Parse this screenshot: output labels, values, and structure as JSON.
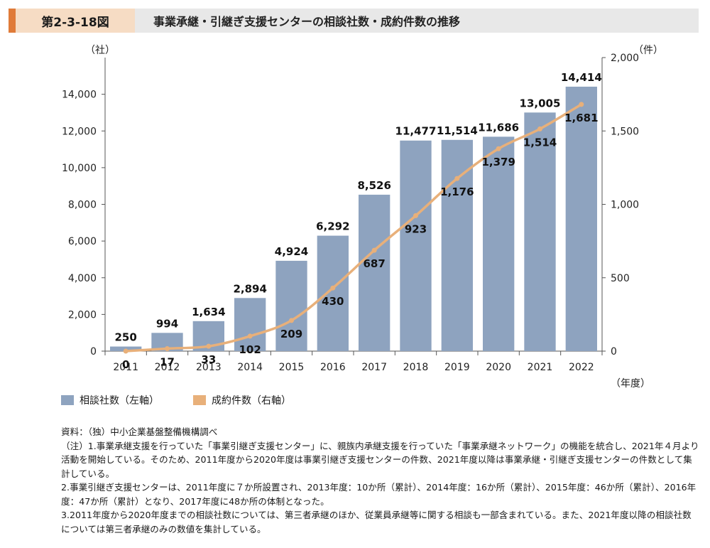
{
  "header": {
    "figure_number": "第2-3-18図",
    "title": "事業承継・引継ぎ支援センターの相談社数・成約件数の推移"
  },
  "chart_data": {
    "type": "bar",
    "categories": [
      "2011",
      "2012",
      "2013",
      "2014",
      "2015",
      "2016",
      "2017",
      "2018",
      "2019",
      "2020",
      "2021",
      "2022"
    ],
    "series": [
      {
        "name": "相談社数（左軸）",
        "type": "bar",
        "axis": "left",
        "values": [
          250,
          994,
          1634,
          2894,
          4924,
          6292,
          8526,
          11477,
          11514,
          11686,
          13005,
          14414
        ],
        "labels": [
          "250",
          "994",
          "1,634",
          "2,894",
          "4,924",
          "6,292",
          "8,526",
          "11,477",
          "11,514",
          "11,686",
          "13,005",
          "14,414"
        ],
        "color": "#8ea3bf"
      },
      {
        "name": "成約件数（右軸）",
        "type": "line",
        "axis": "right",
        "values": [
          0,
          17,
          33,
          102,
          209,
          430,
          687,
          923,
          1176,
          1379,
          1514,
          1681
        ],
        "labels": [
          "0",
          "17",
          "33",
          "102",
          "209",
          "430",
          "687",
          "923",
          "1,176",
          "1,379",
          "1,514",
          "1,681"
        ],
        "color": "#e8b07a"
      }
    ],
    "left_axis": {
      "unit": "（社）",
      "ylim": [
        0,
        16000
      ],
      "ticks": [
        0,
        2000,
        4000,
        6000,
        8000,
        10000,
        12000,
        14000
      ],
      "tick_labels": [
        "0",
        "2,000",
        "4,000",
        "6,000",
        "8,000",
        "10,000",
        "12,000",
        "14,000"
      ]
    },
    "right_axis": {
      "unit": "（件）",
      "ylim": [
        0,
        2000
      ],
      "ticks": [
        0,
        500,
        1000,
        1500,
        2000
      ],
      "tick_labels": [
        "0",
        "500",
        "1,000",
        "1,500",
        "2,000"
      ]
    },
    "x_unit": "（年度）",
    "grid": false,
    "legend_position": "bottom-left"
  },
  "legend": [
    {
      "label": "相談社数（左軸）",
      "color": "#8ea3bf"
    },
    {
      "label": "成約件数（右軸）",
      "color": "#e8b07a"
    }
  ],
  "notes": [
    "資料：（独）中小企業基盤整備機構調べ",
    "（注）1.事業承継支援を行っていた「事業引継ぎ支援センター」に、親族内承継支援を行っていた「事業承継ネットワーク」の機能を統合し、2021年４月より活動を開始している。そのため、2011年度から2020年度は事業引継ぎ支援センターの件数、2021年度以降は事業承継・引継ぎ支援センターの件数として集計している。",
    "2.事業引継ぎ支援センターは、2011年度に７か所設置され、2013年度：10か所（累計）、2014年度：16か所（累計）、2015年度：46か所（累計）、2016年度：47か所（累計）となり、2017年度に48か所の体制となった。",
    "3.2011年度から2020年度までの相談社数については、第三者承継のほか、従業員承継等に関する相談も一部含まれている。また、2021年度以降の相談社数については第三者承継のみの数値を集計している。"
  ]
}
